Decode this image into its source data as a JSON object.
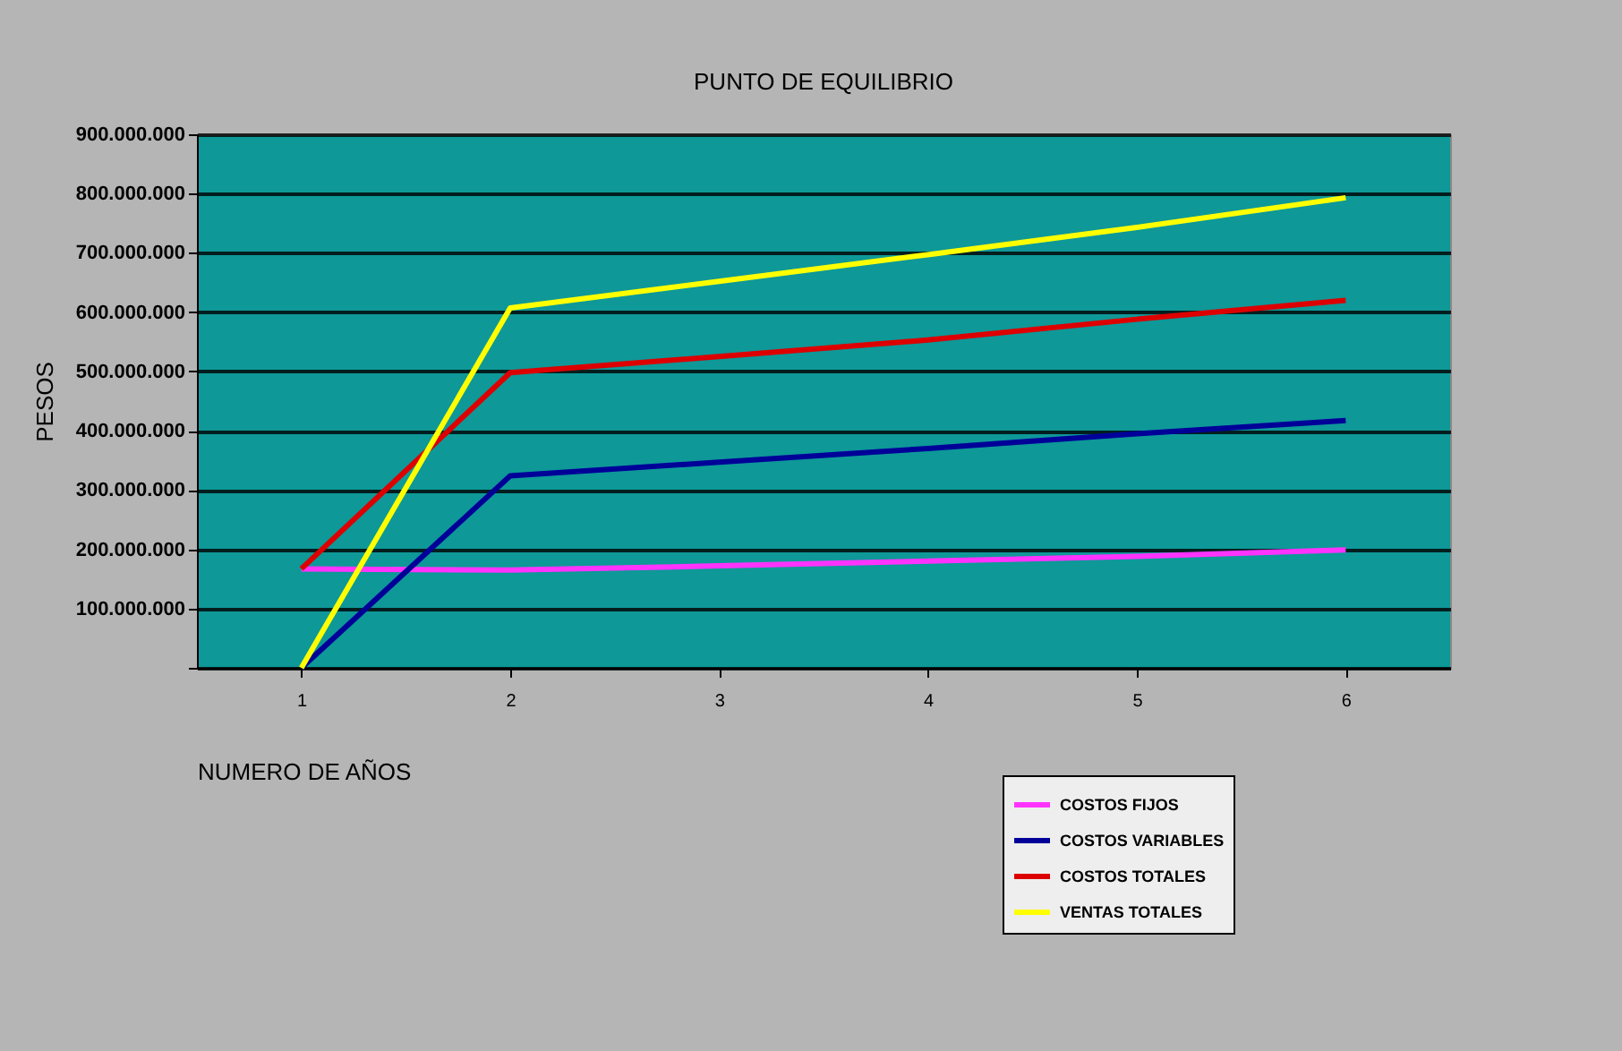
{
  "chart_data": {
    "type": "line",
    "title": "PUNTO DE EQUILIBRIO",
    "xlabel": "NUMERO DE AÑOS",
    "ylabel": "PESOS",
    "categories": [
      "1",
      "2",
      "3",
      "4",
      "5",
      "6"
    ],
    "series": [
      {
        "name": "COSTOS FIJOS",
        "color": "#ff33ff",
        "values": [
          167000000,
          165000000,
          172000000,
          180000000,
          188000000,
          199000000
        ]
      },
      {
        "name": "COSTOS VARIABLES",
        "color": "#000099",
        "values": [
          0,
          324000000,
          347000000,
          370000000,
          395000000,
          417000000
        ]
      },
      {
        "name": "COSTOS TOTALES",
        "color": "#dd0000",
        "values": [
          167000000,
          498000000,
          525000000,
          553000000,
          588000000,
          620000000
        ]
      },
      {
        "name": "VENTAS TOTALES",
        "color": "#ffff00",
        "values": [
          0,
          607000000,
          652000000,
          697000000,
          743000000,
          793000000
        ]
      }
    ],
    "ylim": [
      0,
      900000000
    ],
    "yticks": [
      {
        "value": 0,
        "label": null
      },
      {
        "value": 100000000,
        "label": "100.000.000"
      },
      {
        "value": 200000000,
        "label": "200.000.000"
      },
      {
        "value": 300000000,
        "label": "300.000.000"
      },
      {
        "value": 400000000,
        "label": "400.000.000"
      },
      {
        "value": 500000000,
        "label": "500.000.000"
      },
      {
        "value": 600000000,
        "label": "600.000.000"
      },
      {
        "value": 700000000,
        "label": "700.000.000"
      },
      {
        "value": 800000000,
        "label": "800.000.000"
      },
      {
        "value": 900000000,
        "label": "900.000.000"
      }
    ],
    "grid": "y",
    "legend": "bottom right",
    "marker": "none",
    "line_style": "solid"
  }
}
